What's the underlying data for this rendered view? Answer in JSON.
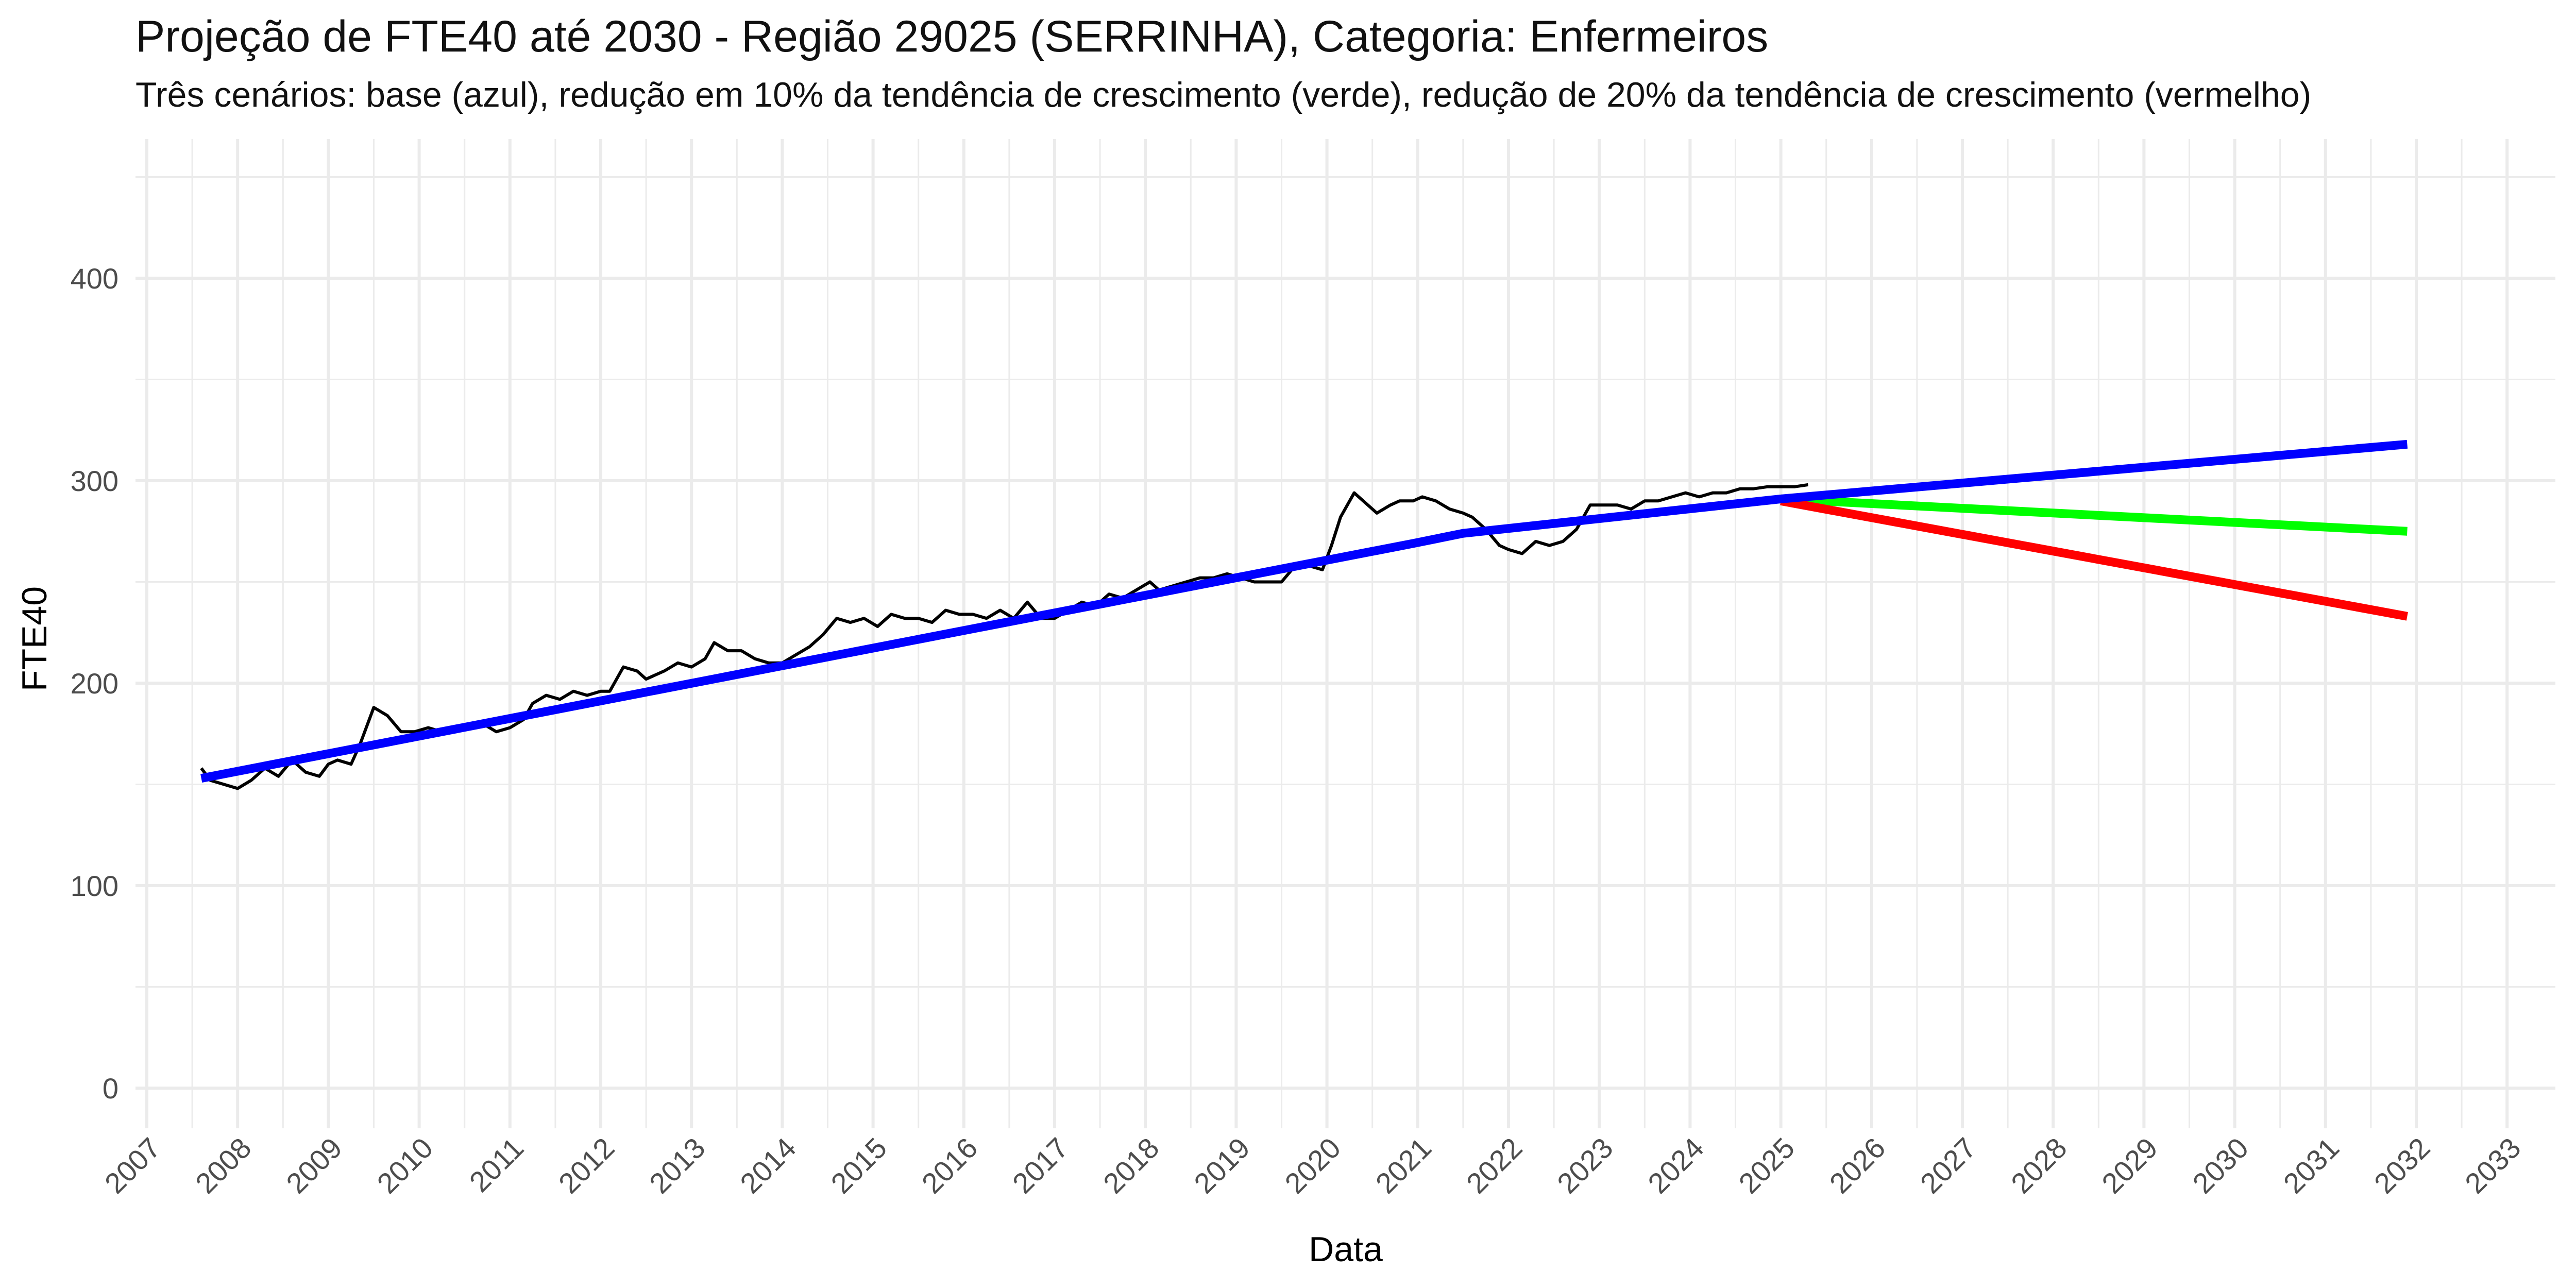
{
  "chart_data": {
    "type": "line",
    "title": "Projeção de FTE40 até 2030 - Região 29025 (SERRINHA), Categoria: Enfermeiros",
    "subtitle": "Três cenários: base (azul), redução em 10% da tendência de crescimento (verde), redução de 20% da tendência de crescimento (vermelho)",
    "xlabel": "Data",
    "ylabel": "FTE40",
    "xlim": [
      2006.5,
      2033.2
    ],
    "ylim": [
      -20,
      470
    ],
    "y_ticks": [
      0,
      100,
      200,
      300,
      400
    ],
    "x_ticks": [
      "2007",
      "2008",
      "2009",
      "2010",
      "2011",
      "2012",
      "2013",
      "2014",
      "2015",
      "2016",
      "2017",
      "2018",
      "2019",
      "2020",
      "2021",
      "2022",
      "2023",
      "2024",
      "2025",
      "2026",
      "2027",
      "2028",
      "2029",
      "2030",
      "2031",
      "2032",
      "2033"
    ],
    "grid": true,
    "legend": "none",
    "colors": {
      "observed": "#000000",
      "base": "#0000ff",
      "reduction_10": "#00ff00",
      "reduction_20": "#ff0000",
      "grid": "#ebebeb"
    },
    "series": [
      {
        "key": "observed",
        "x": [
          2007.6,
          2007.7,
          2007.85,
          2008.0,
          2008.15,
          2008.3,
          2008.45,
          2008.6,
          2008.75,
          2008.9,
          2009.0,
          2009.1,
          2009.25,
          2009.35,
          2009.5,
          2009.65,
          2009.8,
          2009.95,
          2010.1,
          2010.25,
          2010.4,
          2010.55,
          2010.7,
          2010.85,
          2011.0,
          2011.15,
          2011.25,
          2011.4,
          2011.55,
          2011.7,
          2011.85,
          2012.0,
          2012.1,
          2012.25,
          2012.4,
          2012.5,
          2012.7,
          2012.85,
          2013.0,
          2013.15,
          2013.25,
          2013.4,
          2013.55,
          2013.7,
          2013.85,
          2014.0,
          2014.15,
          2014.3,
          2014.45,
          2014.6,
          2014.75,
          2014.9,
          2015.05,
          2015.2,
          2015.35,
          2015.5,
          2015.65,
          2015.8,
          2015.95,
          2016.1,
          2016.25,
          2016.4,
          2016.55,
          2016.7,
          2016.85,
          2017.0,
          2017.15,
          2017.3,
          2017.45,
          2017.6,
          2017.75,
          2017.9,
          2018.05,
          2018.15,
          2018.3,
          2018.45,
          2018.6,
          2018.75,
          2018.9,
          2019.05,
          2019.2,
          2019.35,
          2019.5,
          2019.65,
          2019.8,
          2019.95,
          2020.05,
          2020.15,
          2020.3,
          2020.45,
          2020.55,
          2020.7,
          2020.8,
          2020.95,
          2021.05,
          2021.2,
          2021.35,
          2021.5,
          2021.6,
          2021.75,
          2021.9,
          2022.0,
          2022.15,
          2022.3,
          2022.45,
          2022.6,
          2022.75,
          2022.9,
          2023.05,
          2023.2,
          2023.35,
          2023.5,
          2023.65,
          2023.8,
          2023.95,
          2024.1,
          2024.25,
          2024.4,
          2024.55,
          2024.7,
          2024.85,
          2025.0,
          2025.15,
          2025.3
        ],
        "values": [
          158,
          152,
          150,
          148,
          152,
          158,
          154,
          162,
          156,
          154,
          160,
          162,
          160,
          170,
          188,
          184,
          176,
          176,
          178,
          176,
          176,
          178,
          180,
          176,
          178,
          182,
          190,
          194,
          192,
          196,
          194,
          196,
          196,
          208,
          206,
          202,
          206,
          210,
          208,
          212,
          220,
          216,
          216,
          212,
          210,
          210,
          214,
          218,
          224,
          232,
          230,
          232,
          228,
          234,
          232,
          232,
          230,
          236,
          234,
          234,
          232,
          236,
          232,
          240,
          232,
          232,
          236,
          240,
          238,
          244,
          242,
          246,
          250,
          246,
          248,
          250,
          252,
          252,
          254,
          252,
          250,
          250,
          250,
          258,
          258,
          256,
          268,
          282,
          294,
          288,
          284,
          288,
          290,
          290,
          292,
          290,
          286,
          284,
          282,
          276,
          268,
          266,
          264,
          270,
          268,
          270,
          276,
          288,
          288,
          288,
          286,
          290,
          290,
          292,
          294,
          292,
          294,
          294,
          296,
          296,
          297,
          297,
          297,
          298
        ]
      },
      {
        "key": "base",
        "x": [
          2007.6,
          2020.95,
          2021.5,
          2025.0,
          2031.9
        ],
        "values": [
          153,
          269,
          274,
          291,
          318
        ]
      },
      {
        "key": "reduction_10",
        "x": [
          2025.0,
          2031.9
        ],
        "values": [
          291,
          275
        ]
      },
      {
        "key": "reduction_20",
        "x": [
          2025.0,
          2031.9
        ],
        "values": [
          290,
          233
        ]
      }
    ]
  }
}
